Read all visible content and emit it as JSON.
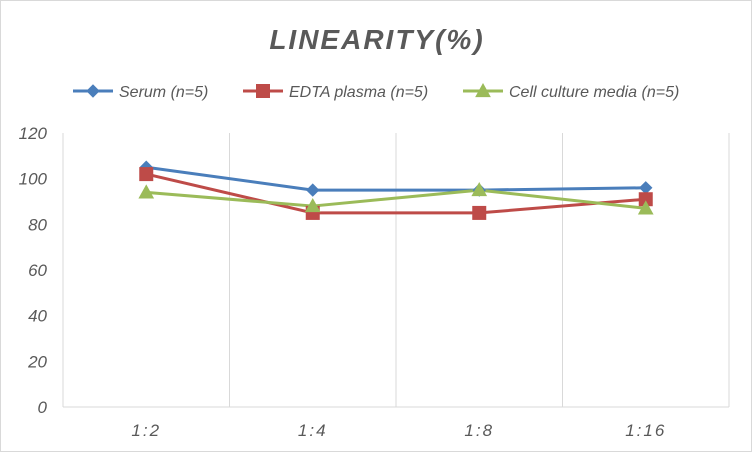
{
  "chart_data": {
    "type": "line",
    "title": "LINEARITY(%)",
    "xlabel": "",
    "ylabel": "",
    "categories": [
      "1:2",
      "1:4",
      "1:8",
      "1:16"
    ],
    "ylim": [
      0,
      120
    ],
    "yticks": [
      "0",
      "20",
      "40",
      "60",
      "80",
      "100",
      "120"
    ],
    "grid": "horizontal and vertical",
    "legend_position": "top",
    "series": [
      {
        "name": "Serum (n=5)",
        "color": "#4A7EBB",
        "marker": "diamond",
        "values": [
          105,
          95,
          95,
          96
        ]
      },
      {
        "name": "EDTA plasma (n=5)",
        "color": "#BE4B48",
        "marker": "square",
        "values": [
          102,
          85,
          85,
          91
        ]
      },
      {
        "name": "Cell culture media (n=5)",
        "color": "#9BBB59",
        "marker": "triangle",
        "values": [
          94,
          88,
          95,
          87
        ]
      }
    ]
  }
}
